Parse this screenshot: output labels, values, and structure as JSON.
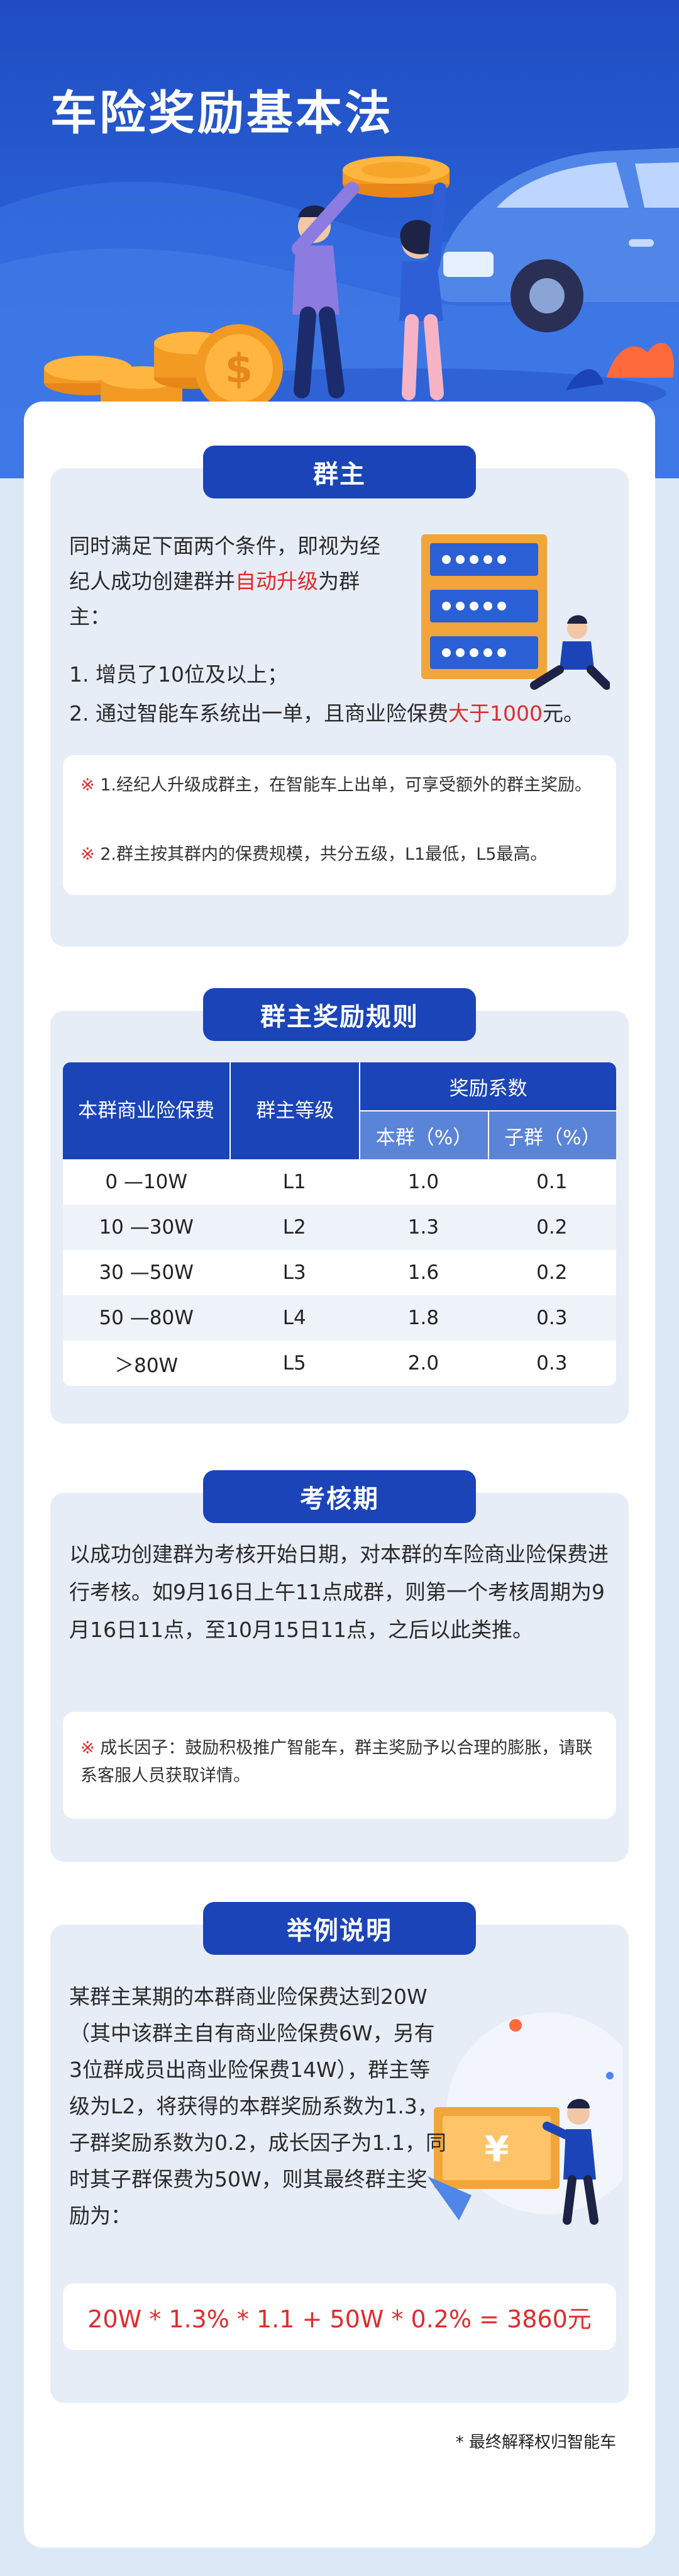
{
  "hero": {
    "title": "车险奖励基本法"
  },
  "section1": {
    "title": "群主",
    "intro_pre": "同时满足下面两个条件，即视为经纪人成功创建群并",
    "intro_red": "自动升级",
    "intro_post": "为群主：",
    "cond1": "1. 增员了10位及以上；",
    "cond2_pre": "2. 通过智能车系统出一单，且商业险保费",
    "cond2_red": "大于1000",
    "cond2_post": "元。",
    "note_mark": "※",
    "note1": "1.经纪人升级成群主，在智能车上出单，可享受额外的群主奖励。",
    "note2": "2.群主按其群内的保费规模，共分五级，L1最低，L5最高。"
  },
  "section2": {
    "title": "群主奖励规则",
    "headers": {
      "premium": "本群商业险保费",
      "level": "群主等级",
      "coef": "奖励系数",
      "own": "本群（%）",
      "sub": "子群（%）"
    },
    "rows": [
      {
        "premium": "0 —10W",
        "level": "L1",
        "own": "1.0",
        "sub": "0.1"
      },
      {
        "premium": "10 —30W",
        "level": "L2",
        "own": "1.3",
        "sub": "0.2"
      },
      {
        "premium": "30 —50W",
        "level": "L3",
        "own": "1.6",
        "sub": "0.2"
      },
      {
        "premium": "50 —80W",
        "level": "L4",
        "own": "1.8",
        "sub": "0.3"
      },
      {
        "premium": "＞80W",
        "level": "L5",
        "own": "2.0",
        "sub": "0.3"
      }
    ]
  },
  "section3": {
    "title": "考核期",
    "body": "以成功创建群为考核开始日期，对本群的车险商业险保费进行考核。如9月16日上午11点成群，则第一个考核周期为9月16日11点，至10月15日11点，之后以此类推。",
    "note_mark": "※",
    "note": "成长因子：鼓励积极推广智能车，群主奖励予以合理的膨胀，请联系客服人员获取详情。"
  },
  "section4": {
    "title": "举例说明",
    "body": "某群主某期的本群商业险保费达到20W（其中该群主自有商业险保费6W，另有3位群成员出商业险保费14W），群主等级为L2，将获得的本群奖励系数为1.3，子群奖励系数为0.2，成长因子为1.1，同时其子群保费为50W，则其最终群主奖励为：",
    "formula": "20W * 1.3% * 1.1 + 50W * 0.2% = 3860元"
  },
  "footer": {
    "note": "* 最终解释权归智能车"
  },
  "colors": {
    "primary": "#1a44b8",
    "accent_red": "#e02b2b",
    "section_bg": "#e7edf7"
  },
  "icons": [
    "coin-icon",
    "car-illustration",
    "server-illustration",
    "presentation-board-illustration"
  ]
}
